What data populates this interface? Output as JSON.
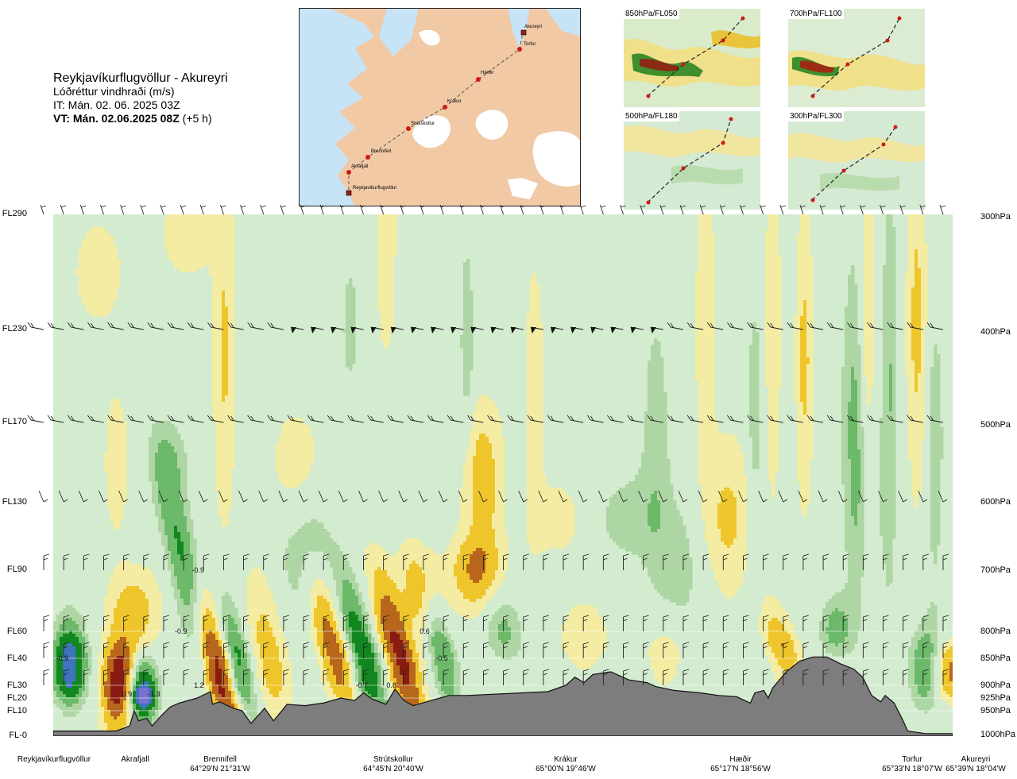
{
  "header": {
    "route": "Reykjavíkurflugvöllur - Akureyri",
    "parameter": "Lóðréttur vindhraði (m/s)",
    "issue_time": "IT: Mán. 02. 06. 2025 03Z",
    "valid_time": "VT: Mán. 02.06.2025 08Z",
    "valid_offset": "(+5 h)"
  },
  "route_map": {
    "points": [
      {
        "name": "Akureyri"
      },
      {
        "name": "Torfur"
      },
      {
        "name": "Hæðir"
      },
      {
        "name": "Krákur"
      },
      {
        "name": "Strútskollur"
      },
      {
        "name": "Brennifell"
      },
      {
        "name": "Akrafjall"
      },
      {
        "name": "Reykjavíkurflugvöllur"
      }
    ]
  },
  "level_maps": [
    {
      "label": "850hPa/FL050"
    },
    {
      "label": "700hPa/FL100"
    },
    {
      "label": "500hPa/FL180"
    },
    {
      "label": "300hPa/FL300"
    }
  ],
  "colors": {
    "background_field": "#d3ebcf",
    "downdraft_light": "#aed6a4",
    "downdraft_mid": "#6cb96a",
    "downdraft_strong": "#12861f",
    "downdraft_extreme": "#3f74bf",
    "downdraft_max": "#7b71cf",
    "updraft_light": "#f4eca2",
    "updraft_mid": "#eec62c",
    "updraft_strong": "#b8661c",
    "updraft_extreme": "#8a1b12",
    "terrain": "#7d7d7d",
    "map_sea": "#c7e3f6",
    "map_land": "#f1c9a5"
  },
  "chart_data": {
    "type": "heatmap",
    "title": "Lóðréttur vindhraði (m/s)",
    "y_axis_left": {
      "ticks": [
        "FL290",
        "FL230",
        "FL170",
        "FL130",
        "FL90",
        "FL60",
        "FL40",
        "FL30",
        "FL20",
        "FL10",
        "FL-0"
      ],
      "flight_levels": [
        290,
        230,
        170,
        130,
        90,
        60,
        40,
        30,
        20,
        10,
        0
      ]
    },
    "y_axis_right": {
      "ticks": [
        "300hPa",
        "400hPa",
        "500hPa",
        "600hPa",
        "700hPa",
        "800hPa",
        "850hPa",
        "900hPa",
        "925hPa",
        "950hPa",
        "1000hPa"
      ],
      "pressure_hpa": [
        300,
        400,
        500,
        600,
        700,
        800,
        850,
        900,
        925,
        950,
        1000
      ]
    },
    "x_axis": {
      "waypoints": [
        {
          "name": "Reykjavíkurflugvöllur",
          "coord": "",
          "frac": 0.0
        },
        {
          "name": "Akrafjall",
          "coord": "",
          "frac": 0.09
        },
        {
          "name": "Brennifell",
          "coord": "64°29'N 21°31'W",
          "frac": 0.186
        },
        {
          "name": "Strútskollur",
          "coord": "64°45'N 20°40'W",
          "frac": 0.377
        },
        {
          "name": "Krákur",
          "coord": "65°00'N 19°46'W",
          "frac": 0.573
        },
        {
          "name": "Hæðir",
          "coord": "65°17'N 18°56'W",
          "frac": 0.749
        },
        {
          "name": "Torfur",
          "coord": "65°33'N 18°07'W",
          "frac": 0.927
        },
        {
          "name": "Akureyri",
          "coord": "65°39'N 18°04'W",
          "frac": 1.0
        }
      ]
    },
    "value_labels": [
      {
        "text": "-0.9",
        "frac": 0.01,
        "fl": 40
      },
      {
        "text": "0.9",
        "frac": 0.082,
        "fl": 23
      },
      {
        "text": "-1.3",
        "frac": 0.112,
        "fl": 23
      },
      {
        "text": "-0.9",
        "frac": 0.161,
        "fl": 90
      },
      {
        "text": "-0.9",
        "frac": 0.142,
        "fl": 60
      },
      {
        "text": "1.2",
        "frac": 0.162,
        "fl": 30
      },
      {
        "text": "-0.7",
        "frac": 0.343,
        "fl": 30
      },
      {
        "text": "0.8",
        "frac": 0.376,
        "fl": 30
      },
      {
        "text": "0.6",
        "frac": 0.413,
        "fl": 60
      },
      {
        "text": "-0.5",
        "frac": 0.432,
        "fl": 40
      }
    ],
    "extrema": {
      "min": -1.3,
      "max": 1.2,
      "units": "m/s"
    }
  }
}
